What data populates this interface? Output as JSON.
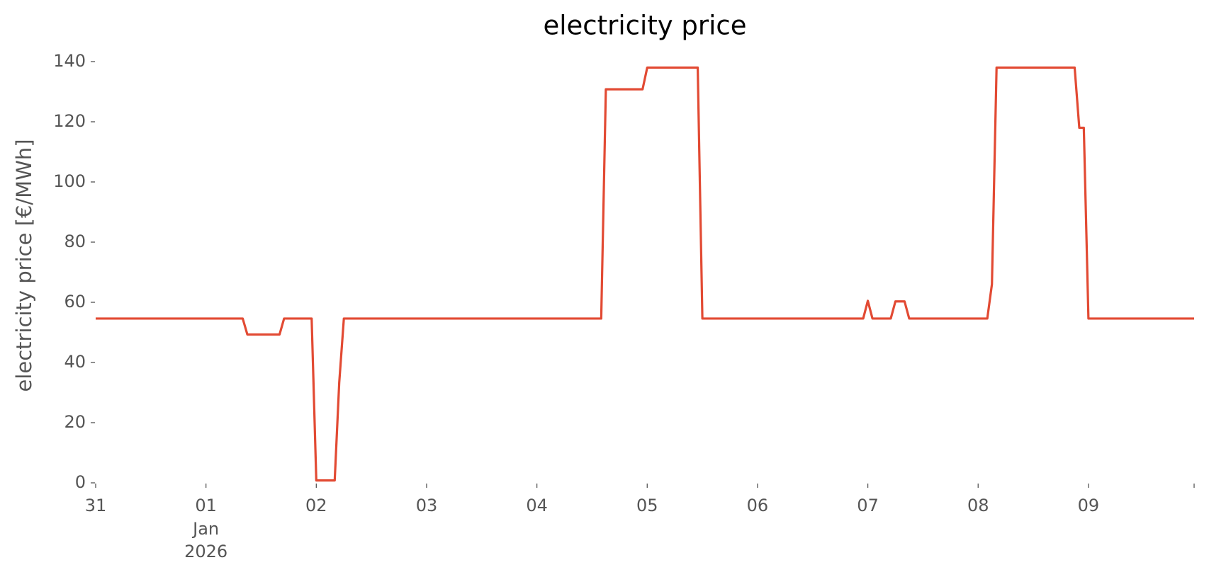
{
  "chart_data": {
    "type": "line",
    "title": "electricity price",
    "ylabel": "electricity price [€/MWh]",
    "color": "#e24a33",
    "x": [
      0,
      1.333,
      1.375,
      1.667,
      1.708,
      1.958,
      2.0,
      2.167,
      2.208,
      2.25,
      4.583,
      4.625,
      4.958,
      5.0,
      5.458,
      5.5,
      6.958,
      7.0,
      7.042,
      7.208,
      7.25,
      7.333,
      7.375,
      8.083,
      8.125,
      8.167,
      8.875,
      8.917,
      8.958,
      9.0,
      9.958
    ],
    "values": [
      54.6,
      54.6,
      49.3,
      49.3,
      54.6,
      54.6,
      0.8,
      0.8,
      33.3,
      54.6,
      54.6,
      130.8,
      130.8,
      138,
      138,
      54.6,
      54.6,
      60.5,
      54.6,
      54.6,
      60.3,
      60.3,
      54.6,
      54.6,
      66,
      138,
      138,
      118,
      118,
      54.6,
      54.6
    ],
    "xlim": [
      0,
      9.958
    ],
    "xticks": [
      {
        "value": 0,
        "label": "31"
      },
      {
        "value": 1,
        "label": "01"
      },
      {
        "value": 2,
        "label": "02"
      },
      {
        "value": 3,
        "label": "03"
      },
      {
        "value": 4,
        "label": "04"
      },
      {
        "value": 5,
        "label": "05"
      },
      {
        "value": 6,
        "label": "06"
      },
      {
        "value": 7,
        "label": "07"
      },
      {
        "value": 8,
        "label": "08"
      },
      {
        "value": 9,
        "label": "09"
      },
      {
        "value": 9.958,
        "label": null
      }
    ],
    "x_tick_sublabels": [
      {
        "value": 1,
        "lines": [
          "Jan",
          "2026"
        ]
      }
    ],
    "ylim": [
      0,
      140
    ],
    "yticks": [
      0,
      20,
      40,
      60,
      80,
      100,
      120,
      140
    ],
    "grid": false
  }
}
